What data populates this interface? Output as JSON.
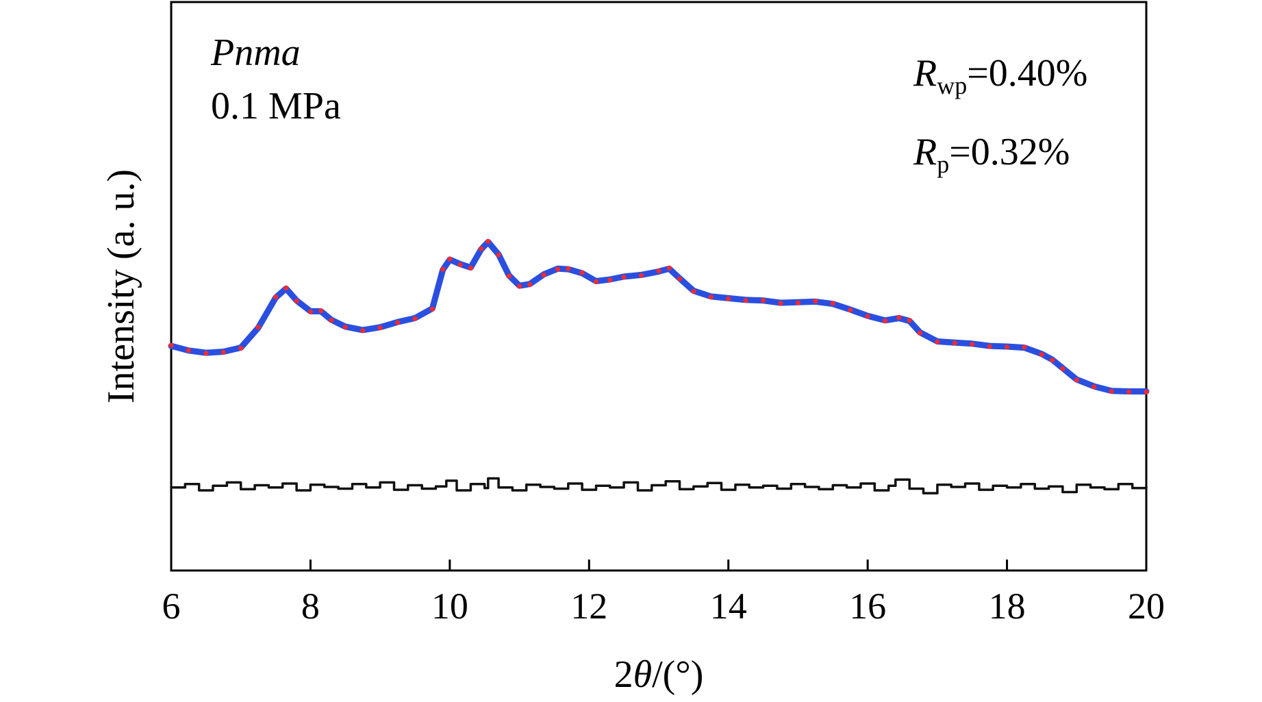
{
  "chart_data": {
    "type": "line",
    "title": "",
    "xlabel_prefix": "2",
    "xlabel_theta": "θ",
    "xlabel_suffix": "/(°)",
    "ylabel": "Intensity (a. u.)",
    "xlim": [
      6,
      20
    ],
    "ylim": [
      0,
      1
    ],
    "x_ticks": [
      6,
      8,
      10,
      12,
      14,
      16,
      18,
      20
    ],
    "y_ticks_labeled": false,
    "grid": false,
    "legend": "none",
    "annotations": {
      "space_group": "Pnma",
      "pressure": "0.1 MPa",
      "rwp_symbol": "R",
      "rwp_sub": "wp",
      "rwp_value": "=0.40%",
      "rp_symbol": "R",
      "rp_sub": "p",
      "rp_value": "=0.32%"
    },
    "series": [
      {
        "role": "observed",
        "style": "scatter",
        "color": "#ff2a2a",
        "x": [
          6.0,
          6.25,
          6.5,
          6.75,
          7.0,
          7.25,
          7.5,
          7.65,
          7.8,
          8.0,
          8.15,
          8.3,
          8.5,
          8.75,
          9.0,
          9.25,
          9.5,
          9.75,
          9.9,
          10.0,
          10.15,
          10.3,
          10.45,
          10.55,
          10.7,
          10.85,
          11.0,
          11.15,
          11.35,
          11.55,
          11.7,
          11.9,
          12.1,
          12.3,
          12.5,
          12.75,
          13.0,
          13.15,
          13.3,
          13.5,
          13.75,
          14.0,
          14.25,
          14.5,
          14.75,
          15.0,
          15.25,
          15.5,
          15.75,
          16.0,
          16.25,
          16.45,
          16.6,
          16.75,
          17.0,
          17.25,
          17.5,
          17.75,
          18.0,
          18.25,
          18.5,
          18.65,
          18.8,
          19.0,
          19.25,
          19.5,
          19.75,
          20.0
        ],
        "y": [
          0.396,
          0.387,
          0.382,
          0.384,
          0.391,
          0.428,
          0.481,
          0.497,
          0.474,
          0.455,
          0.457,
          0.44,
          0.428,
          0.422,
          0.427,
          0.436,
          0.443,
          0.46,
          0.53,
          0.548,
          0.538,
          0.532,
          0.566,
          0.579,
          0.555,
          0.518,
          0.5,
          0.503,
          0.52,
          0.53,
          0.531,
          0.524,
          0.508,
          0.511,
          0.516,
          0.519,
          0.527,
          0.532,
          0.513,
          0.491,
          0.481,
          0.478,
          0.475,
          0.475,
          0.47,
          0.471,
          0.474,
          0.47,
          0.458,
          0.447,
          0.439,
          0.445,
          0.44,
          0.418,
          0.402,
          0.4,
          0.398,
          0.394,
          0.393,
          0.393,
          0.38,
          0.37,
          0.355,
          0.335,
          0.323,
          0.315,
          0.314,
          0.314
        ]
      },
      {
        "role": "calculated",
        "style": "line",
        "color": "#2a4fe0",
        "x": [
          6.0,
          6.25,
          6.5,
          6.75,
          7.0,
          7.25,
          7.5,
          7.65,
          7.8,
          8.0,
          8.15,
          8.3,
          8.5,
          8.75,
          9.0,
          9.25,
          9.5,
          9.75,
          9.9,
          10.0,
          10.15,
          10.3,
          10.45,
          10.55,
          10.7,
          10.85,
          11.0,
          11.15,
          11.35,
          11.55,
          11.7,
          11.9,
          12.1,
          12.3,
          12.5,
          12.75,
          13.0,
          13.15,
          13.3,
          13.5,
          13.75,
          14.0,
          14.25,
          14.5,
          14.75,
          15.0,
          15.25,
          15.5,
          15.75,
          16.0,
          16.25,
          16.45,
          16.6,
          16.75,
          17.0,
          17.25,
          17.5,
          17.75,
          18.0,
          18.25,
          18.5,
          18.65,
          18.8,
          19.0,
          19.25,
          19.5,
          19.75,
          20.0
        ],
        "y": [
          0.395,
          0.387,
          0.383,
          0.385,
          0.392,
          0.427,
          0.48,
          0.496,
          0.475,
          0.456,
          0.456,
          0.441,
          0.429,
          0.423,
          0.428,
          0.437,
          0.444,
          0.461,
          0.529,
          0.547,
          0.539,
          0.533,
          0.565,
          0.578,
          0.556,
          0.519,
          0.501,
          0.504,
          0.521,
          0.531,
          0.53,
          0.523,
          0.509,
          0.512,
          0.517,
          0.52,
          0.526,
          0.531,
          0.514,
          0.492,
          0.482,
          0.479,
          0.476,
          0.475,
          0.471,
          0.472,
          0.473,
          0.469,
          0.459,
          0.448,
          0.44,
          0.444,
          0.439,
          0.419,
          0.403,
          0.401,
          0.399,
          0.395,
          0.394,
          0.392,
          0.381,
          0.371,
          0.356,
          0.336,
          0.324,
          0.316,
          0.315,
          0.315
        ]
      },
      {
        "role": "difference",
        "style": "line",
        "color": "#111111",
        "baseline": 0.147,
        "x": [
          6.0,
          6.2,
          6.4,
          6.6,
          6.8,
          7.0,
          7.2,
          7.4,
          7.6,
          7.8,
          8.0,
          8.2,
          8.4,
          8.6,
          8.8,
          9.0,
          9.2,
          9.4,
          9.6,
          9.8,
          9.95,
          10.1,
          10.3,
          10.5,
          10.55,
          10.7,
          10.9,
          11.1,
          11.3,
          11.5,
          11.7,
          11.9,
          12.1,
          12.3,
          12.5,
          12.7,
          12.9,
          13.1,
          13.3,
          13.5,
          13.7,
          13.9,
          14.1,
          14.3,
          14.5,
          14.7,
          14.9,
          15.1,
          15.3,
          15.5,
          15.7,
          15.9,
          16.1,
          16.3,
          16.4,
          16.6,
          16.8,
          17.0,
          17.2,
          17.4,
          17.6,
          17.8,
          18.0,
          18.2,
          18.4,
          18.6,
          18.8,
          19.0,
          19.2,
          19.4,
          19.6,
          19.8,
          20.0
        ],
        "y": [
          0.146,
          0.152,
          0.141,
          0.149,
          0.155,
          0.143,
          0.15,
          0.146,
          0.153,
          0.141,
          0.151,
          0.147,
          0.144,
          0.152,
          0.146,
          0.155,
          0.142,
          0.15,
          0.144,
          0.148,
          0.158,
          0.141,
          0.152,
          0.145,
          0.162,
          0.146,
          0.141,
          0.151,
          0.147,
          0.144,
          0.153,
          0.142,
          0.149,
          0.146,
          0.155,
          0.141,
          0.15,
          0.157,
          0.143,
          0.148,
          0.154,
          0.142,
          0.151,
          0.146,
          0.149,
          0.144,
          0.152,
          0.147,
          0.143,
          0.15,
          0.146,
          0.153,
          0.141,
          0.149,
          0.16,
          0.144,
          0.136,
          0.151,
          0.147,
          0.153,
          0.142,
          0.149,
          0.146,
          0.152,
          0.144,
          0.148,
          0.138,
          0.151,
          0.146,
          0.143,
          0.152,
          0.145,
          0.148
        ]
      }
    ]
  }
}
